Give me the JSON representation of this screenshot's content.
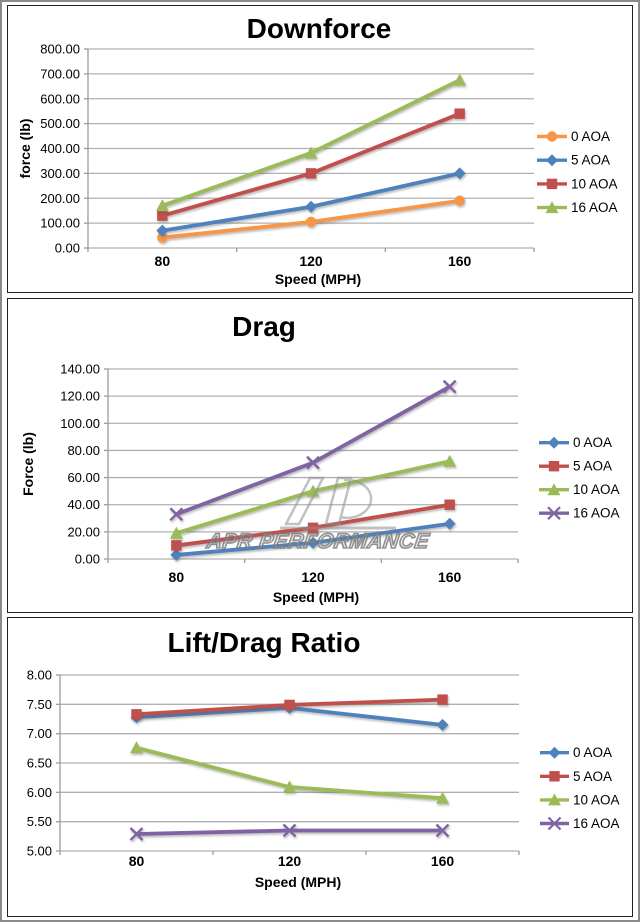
{
  "style": {
    "grid_color": "#b0b0b0",
    "axis_color": "#9b9b9b",
    "text_color": "#000000",
    "panel_border_color": "#222222",
    "frame_color": "#8a8a8a"
  },
  "watermark": {
    "text": "APR PERFORMANCE"
  },
  "chart_data": [
    {
      "type": "line",
      "title": "Downforce",
      "xlabel": "Speed (MPH)",
      "ylabel": "force (lb)",
      "categories": [
        "80",
        "120",
        "160"
      ],
      "x_values": [
        80,
        120,
        160
      ],
      "ylim": [
        0,
        800
      ],
      "y_tick_step": 100,
      "y_tick_labels": [
        "800.00",
        "700.00",
        "600.00",
        "500.00",
        "400.00",
        "300.00",
        "200.00",
        "100.00",
        "0.00"
      ],
      "grid": true,
      "legend_position": "right",
      "series": [
        {
          "name": "0 AOA",
          "color": "#F79646",
          "marker": "circle",
          "values": [
            42,
            105,
            190
          ]
        },
        {
          "name": "5 AOA",
          "color": "#4F81BD",
          "marker": "diamond",
          "values": [
            70,
            166,
            300
          ]
        },
        {
          "name": "10 AOA",
          "color": "#C0504D",
          "marker": "square",
          "values": [
            130,
            300,
            540
          ]
        },
        {
          "name": "16 AOA",
          "color": "#9BBB59",
          "marker": "triangle",
          "values": [
            170,
            382,
            675
          ]
        }
      ]
    },
    {
      "type": "line",
      "title": "Drag",
      "xlabel": "Speed (MPH)",
      "ylabel": "Force (lb)",
      "categories": [
        "80",
        "120",
        "160"
      ],
      "x_values": [
        80,
        120,
        160
      ],
      "ylim": [
        0,
        140
      ],
      "y_tick_step": 20,
      "y_tick_labels": [
        "140.00",
        "120.00",
        "100.00",
        "80.00",
        "60.00",
        "40.00",
        "20.00",
        "0.00"
      ],
      "grid": true,
      "legend_position": "right",
      "series": [
        {
          "name": "0 AOA",
          "color": "#4F81BD",
          "marker": "diamond",
          "values": [
            3,
            12,
            26
          ]
        },
        {
          "name": "5 AOA",
          "color": "#C0504D",
          "marker": "square",
          "values": [
            10,
            23,
            40
          ]
        },
        {
          "name": "10 AOA",
          "color": "#9BBB59",
          "marker": "triangle",
          "values": [
            19,
            50,
            72
          ]
        },
        {
          "name": "16 AOA",
          "color": "#8064A2",
          "marker": "x",
          "values": [
            33,
            71,
            127
          ]
        }
      ]
    },
    {
      "type": "line",
      "title": "Lift/Drag Ratio",
      "xlabel": "Speed (MPH)",
      "ylabel": "",
      "categories": [
        "80",
        "120",
        "160"
      ],
      "x_values": [
        80,
        120,
        160
      ],
      "ylim": [
        5,
        8
      ],
      "y_tick_step": 0.5,
      "y_tick_labels": [
        "8.00",
        "7.50",
        "7.00",
        "6.50",
        "6.00",
        "5.50",
        "5.00"
      ],
      "grid": true,
      "legend_position": "right",
      "series": [
        {
          "name": "0 AOA",
          "color": "#4F81BD",
          "marker": "diamond",
          "values": [
            7.28,
            7.44,
            7.15
          ]
        },
        {
          "name": "5 AOA",
          "color": "#C0504D",
          "marker": "square",
          "values": [
            7.33,
            7.49,
            7.58
          ]
        },
        {
          "name": "10 AOA",
          "color": "#9BBB59",
          "marker": "triangle",
          "values": [
            6.76,
            6.09,
            5.9
          ]
        },
        {
          "name": "16 AOA",
          "color": "#8064A2",
          "marker": "x",
          "values": [
            5.29,
            5.35,
            5.35
          ]
        }
      ]
    }
  ]
}
